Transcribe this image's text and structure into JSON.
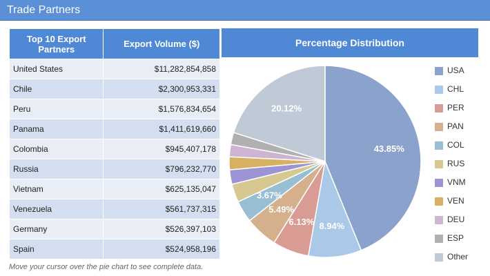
{
  "window": {
    "title": "Trade Partners"
  },
  "table": {
    "headers": [
      "Top 10 Export Partners",
      "Export Volume ($)"
    ],
    "rows": [
      {
        "country": "United States",
        "value": "$11,282,854,858"
      },
      {
        "country": "Chile",
        "value": "$2,300,953,331"
      },
      {
        "country": "Peru",
        "value": "$1,576,834,654"
      },
      {
        "country": "Panama",
        "value": "$1,411,619,660"
      },
      {
        "country": "Colombia",
        "value": "$945,407,178"
      },
      {
        "country": "Russia",
        "value": "$796,232,770"
      },
      {
        "country": "Vietnam",
        "value": "$625,135,047"
      },
      {
        "country": "Venezuela",
        "value": "$561,737,315"
      },
      {
        "country": "Germany",
        "value": "$526,397,103"
      },
      {
        "country": "Spain",
        "value": "$524,958,196"
      }
    ]
  },
  "distribution_header": "Percentage Distribution",
  "footnote": "Move your cursor over the pie chart to see complete data.",
  "chart_data": {
    "type": "pie",
    "title": "Percentage Distribution",
    "legend_position": "right",
    "slices": [
      {
        "code": "USA",
        "value": 43.85,
        "label": "43.85%",
        "color": "#8aa2cc"
      },
      {
        "code": "CHL",
        "value": 8.94,
        "label": "8.94%",
        "color": "#aac8e8"
      },
      {
        "code": "PER",
        "value": 6.13,
        "label": "6.13%",
        "color": "#d99c94"
      },
      {
        "code": "PAN",
        "value": 5.49,
        "label": "5.49%",
        "color": "#d4b08c"
      },
      {
        "code": "COL",
        "value": 3.67,
        "label": "3.67%",
        "color": "#98bed4"
      },
      {
        "code": "RUS",
        "value": 3.09,
        "label": "",
        "color": "#d7c892"
      },
      {
        "code": "VNM",
        "value": 2.43,
        "label": "",
        "color": "#9c94d4"
      },
      {
        "code": "VEN",
        "value": 2.18,
        "label": "",
        "color": "#d8b062"
      },
      {
        "code": "DEU",
        "value": 2.05,
        "label": "",
        "color": "#cdb4d0"
      },
      {
        "code": "ESP",
        "value": 2.04,
        "label": "",
        "color": "#b0b0b0"
      },
      {
        "code": "Other",
        "value": 20.12,
        "label": "20.12%",
        "color": "#c0cad6"
      }
    ]
  }
}
